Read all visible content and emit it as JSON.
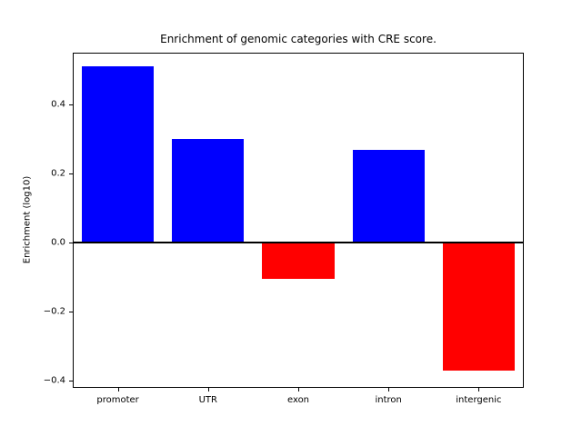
{
  "chart_data": {
    "type": "bar",
    "title": "Enrichment of genomic categories with CRE score.",
    "xlabel": "",
    "ylabel": "Enrichment (log10)",
    "categories": [
      "promoter",
      "UTR",
      "exon",
      "intron",
      "intergenic"
    ],
    "values": [
      0.51,
      0.3,
      -0.105,
      0.27,
      -0.37
    ],
    "ylim": [
      -0.42,
      0.55
    ],
    "yticks": [
      -0.4,
      -0.2,
      0.0,
      0.2,
      0.4
    ],
    "ytick_labels": [
      "−0.4",
      "−0.2",
      "0.0",
      "0.2",
      "0.4"
    ],
    "positive_color": "#0000ff",
    "negative_color": "#ff0000",
    "zero_line": true,
    "grid": false,
    "legend_position": "none",
    "bar_width_fraction": 0.8
  }
}
